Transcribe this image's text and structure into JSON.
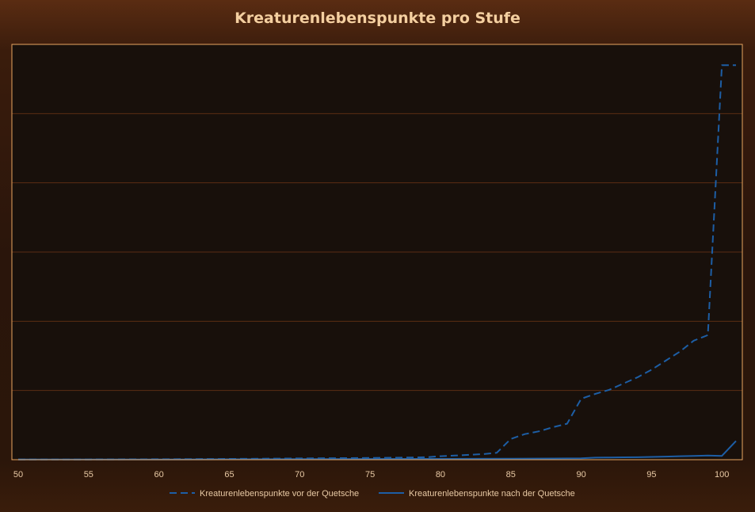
{
  "colors": {
    "plot_background": "#18100b",
    "plot_border": "#e9a661",
    "gridline": "#5a2d14",
    "series_color": "#1d5ea5",
    "text": "#e8c9a4",
    "title": "#f4cfa0"
  },
  "chart_data": {
    "type": "line",
    "title": "Kreaturenlebenspunkte pro Stufe",
    "xlabel": "",
    "ylabel": "",
    "xlim": [
      50,
      101
    ],
    "ylim": [
      0,
      600
    ],
    "x_ticks": [
      50,
      55,
      60,
      65,
      70,
      75,
      80,
      85,
      90,
      95,
      100
    ],
    "y_tick_labels_shown": false,
    "grid": "horizontal",
    "legend_position": "bottom",
    "series": [
      {
        "name": "Kreaturenlebenspunkte vor der Quetsche",
        "style": "dashed",
        "x": [
          50,
          55,
          60,
          65,
          70,
          75,
          78,
          79,
          80,
          81,
          82,
          83,
          84,
          85,
          86,
          87,
          88,
          89,
          90,
          91,
          92,
          93,
          94,
          95,
          96,
          97,
          98,
          99,
          100,
          101
        ],
        "y": [
          0.2,
          0.4,
          0.7,
          1.2,
          1.8,
          2.5,
          3.2,
          3.6,
          5,
          6,
          7,
          8,
          10,
          30,
          37,
          41,
          47,
          52,
          88,
          95,
          101,
          110,
          119,
          130,
          143,
          156,
          172,
          180,
          570,
          570
        ]
      },
      {
        "name": "Kreaturenlebenspunkte nach der Quetsche",
        "style": "solid",
        "x": [
          50,
          55,
          60,
          65,
          70,
          75,
          80,
          85,
          88,
          90,
          91,
          92,
          93,
          94,
          95,
          96,
          97,
          98,
          99,
          100,
          101
        ],
        "y": [
          0.2,
          0.3,
          0.4,
          0.6,
          0.8,
          1.0,
          1.2,
          1.5,
          1.7,
          2.0,
          3,
          3.2,
          3.4,
          3.6,
          4,
          4.5,
          5,
          5.5,
          6,
          5.5,
          27
        ]
      }
    ]
  }
}
